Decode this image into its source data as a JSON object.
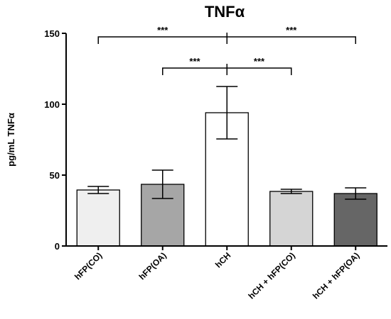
{
  "chart_data": {
    "type": "bar",
    "title": "TNFα",
    "ylabel": "pg/mL TNFα",
    "xlabel": "",
    "ylim": [
      0,
      150
    ],
    "yticks": [
      0,
      50,
      100,
      150
    ],
    "grid": false,
    "legend": "none",
    "categories": [
      "hFP(CO)",
      "hFP(OA)",
      "hCH",
      "hCH + hFP(CO)",
      "hCH + hFP(OA)"
    ],
    "values": [
      39.5,
      43.5,
      94,
      38.5,
      37
    ],
    "errors": [
      2.5,
      10,
      18.5,
      1.5,
      4
    ],
    "colors": [
      "#efefef",
      "#a6a6a6",
      "#ffffff",
      "#d5d5d5",
      "#666666"
    ],
    "significance": [
      {
        "from": 0,
        "to": 2,
        "label": "***",
        "level": 1
      },
      {
        "from": 2,
        "to": 4,
        "label": "***",
        "level": 1
      },
      {
        "from": 1,
        "to": 2,
        "label": "***",
        "level": 0
      },
      {
        "from": 2,
        "to": 3,
        "label": "***",
        "level": 0
      }
    ]
  }
}
